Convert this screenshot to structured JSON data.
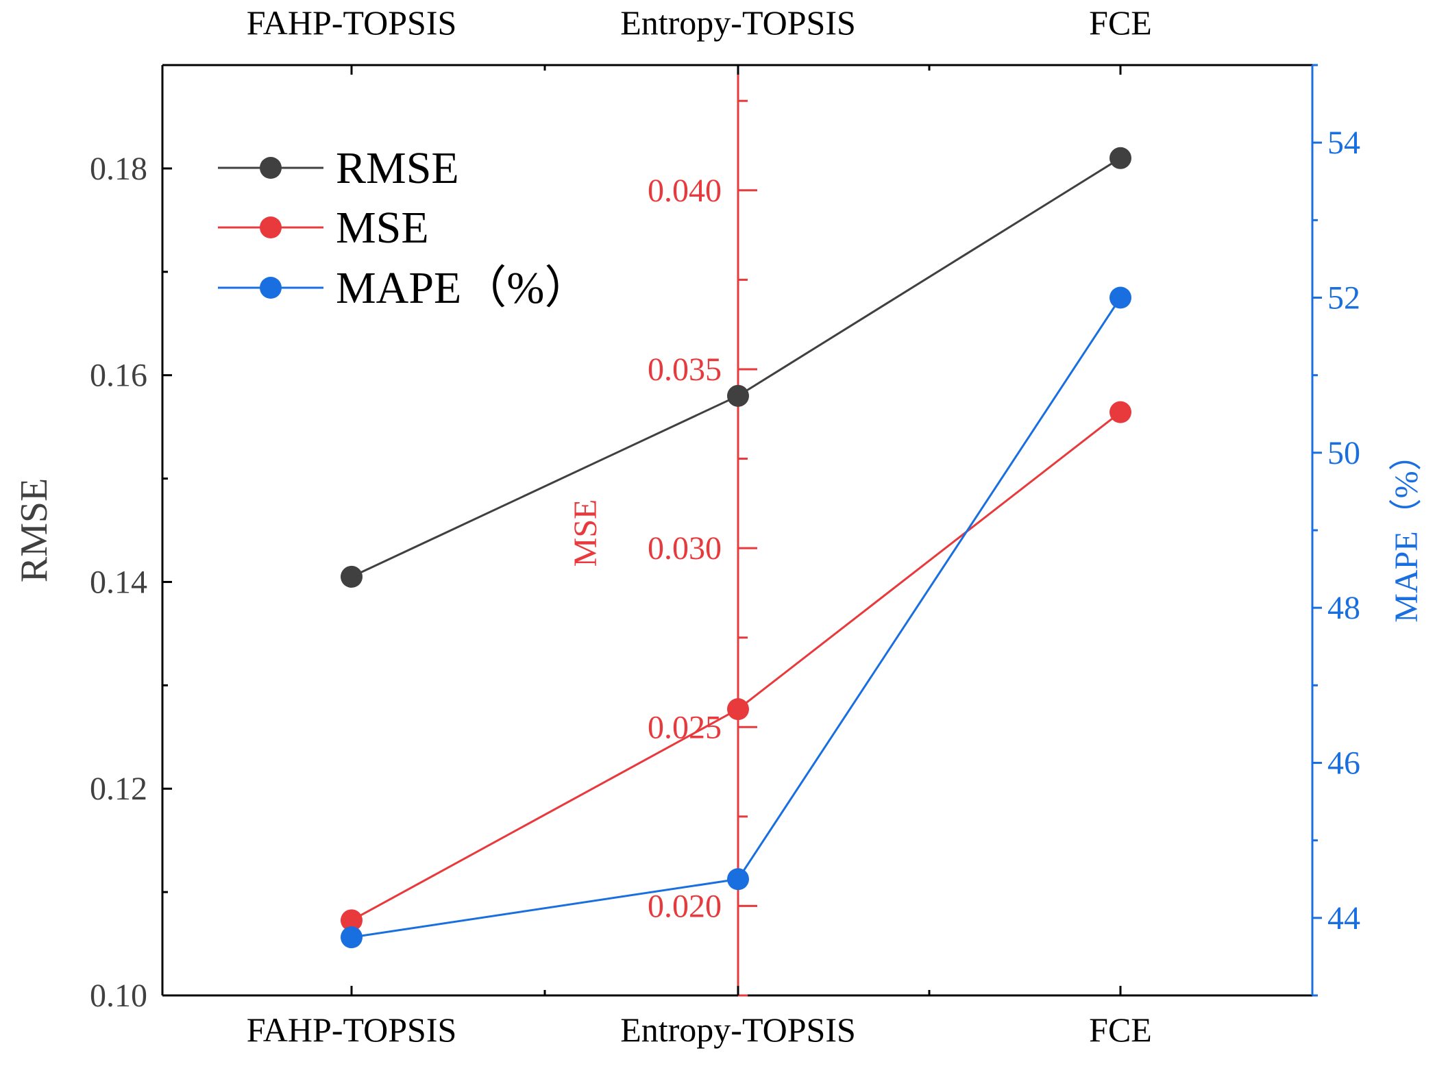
{
  "chart_data": {
    "type": "line",
    "categories": [
      "FAHP-TOPSIS",
      "Entropy-TOPSIS",
      "FCE"
    ],
    "series": [
      {
        "name": "RMSE",
        "axis": "left",
        "color": "#404040",
        "values": [
          0.1405,
          0.158,
          0.181
        ]
      },
      {
        "name": "MSE",
        "axis": "middle",
        "color": "#e8393c",
        "values": [
          0.0196,
          0.0255,
          0.0338
        ]
      },
      {
        "name": "MAPE（%）",
        "axis": "right",
        "color": "#1a6fe0",
        "values": [
          43.75,
          44.5,
          52.0
        ]
      }
    ],
    "axes": {
      "left": {
        "label": "RMSE",
        "range": [
          0.1,
          0.19
        ],
        "ticks": [
          0.1,
          0.12,
          0.14,
          0.16,
          0.18
        ],
        "tick_labels": [
          "0.10",
          "0.12",
          "0.14",
          "0.16",
          "0.18"
        ],
        "color": "#404040"
      },
      "middle": {
        "label": "MSE",
        "range": [
          0.0175,
          0.0435
        ],
        "ticks": [
          0.02,
          0.025,
          0.03,
          0.035,
          0.04
        ],
        "tick_labels": [
          "0.020",
          "0.025",
          "0.030",
          "0.035",
          "0.040"
        ],
        "color": "#e8393c"
      },
      "right": {
        "label": "MAPE（%）",
        "range": [
          43.0,
          55.0
        ],
        "ticks": [
          44,
          46,
          48,
          50,
          52,
          54
        ],
        "tick_labels": [
          "44",
          "46",
          "48",
          "50",
          "52",
          "54"
        ],
        "color": "#1a6fe0"
      }
    },
    "legend": {
      "position": "top-left",
      "entries": [
        "RMSE",
        "MSE",
        "MAPE（%）"
      ]
    },
    "top_category_labels": [
      "FAHP-TOPSIS",
      "Entropy-TOPSIS",
      "FCE"
    ],
    "grid": false
  }
}
